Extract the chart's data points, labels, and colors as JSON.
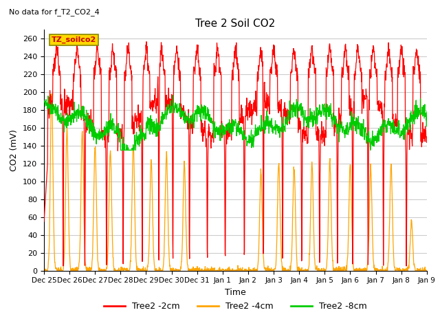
{
  "title": "Tree 2 Soil CO2",
  "subtitle": "No data for f_T2_CO2_4",
  "ylabel": "CO2 (mV)",
  "xlabel": "Time",
  "ylim": [
    0,
    270
  ],
  "yticks": [
    0,
    20,
    40,
    60,
    80,
    100,
    120,
    140,
    160,
    180,
    200,
    220,
    240,
    260
  ],
  "legend_labels": [
    "Tree2 -2cm",
    "Tree2 -4cm",
    "Tree2 -8cm"
  ],
  "legend_colors": [
    "#ff0000",
    "#ffa500",
    "#00cc00"
  ],
  "line_colors": [
    "#ff0000",
    "#ffa500",
    "#00cc00"
  ],
  "annotation_box_label": "TZ_soilco2",
  "annotation_box_color": "#ffd700",
  "annotation_text_color": "#cc0000",
  "bg_color": "#ffffff",
  "grid_color": "#cccccc",
  "num_points": 1500,
  "x_start": 0,
  "x_end": 15,
  "xtick_labels": [
    "Dec 25",
    "Dec 26",
    "Dec 27",
    "Dec 28",
    "Dec 29",
    "Dec 30",
    "Dec 31",
    "Jan 1",
    "Jan 2",
    "Jan 3",
    "Jan 4",
    "Jan 5",
    "Jan 6",
    "Jan 7",
    "Jan 8",
    "Jan 9"
  ],
  "xtick_positions": [
    0,
    1,
    2,
    3,
    4,
    5,
    6,
    7,
    8,
    9,
    10,
    11,
    12,
    13,
    14,
    15
  ]
}
